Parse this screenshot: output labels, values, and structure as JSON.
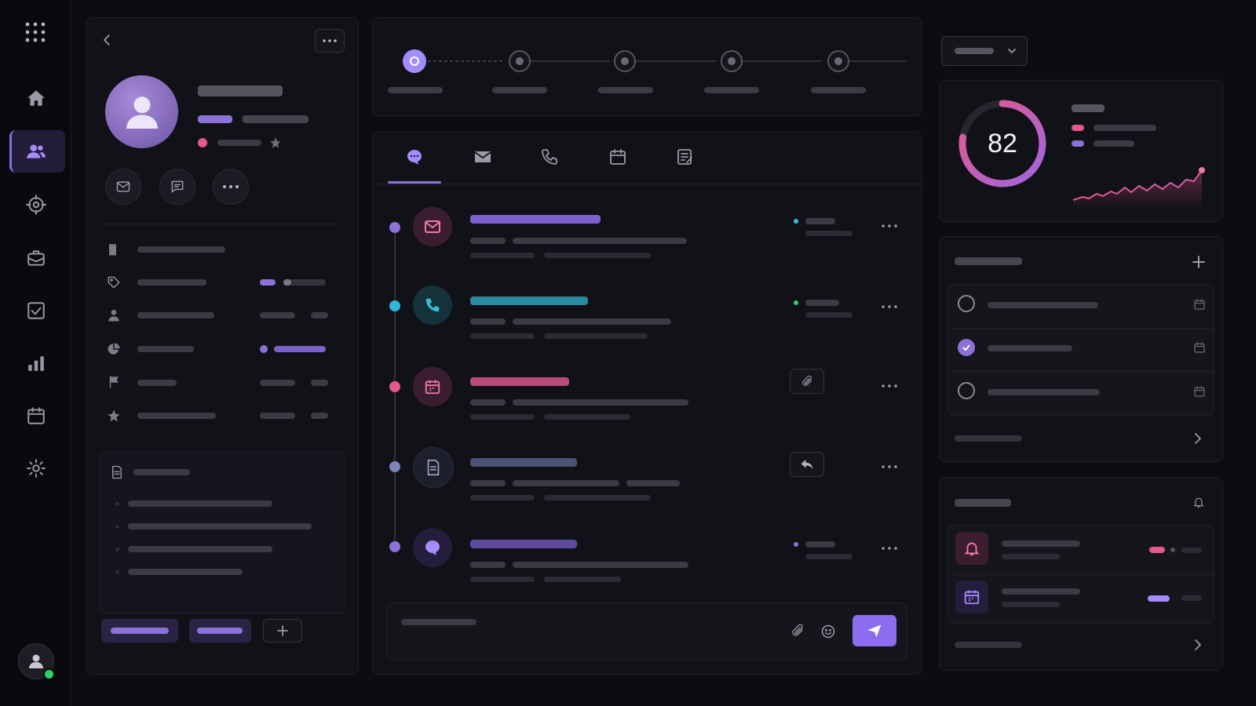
{
  "score": {
    "value": 82
  }
}
